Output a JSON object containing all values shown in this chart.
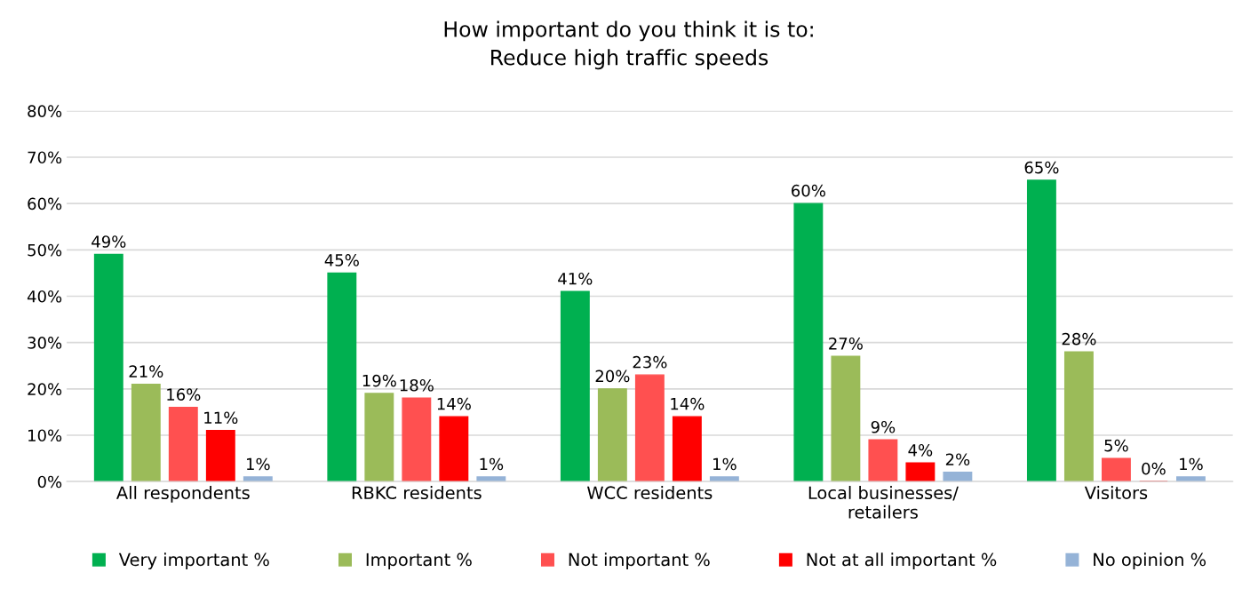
{
  "chart_data": {
    "type": "bar",
    "title": "How important do you think it is to:\nReduce high traffic speeds",
    "categories": [
      "All respondents",
      "RBKC residents",
      "WCC residents",
      "Local businesses/\nretailers",
      "Visitors"
    ],
    "series": [
      {
        "name": "Very important %",
        "color": "#00b050",
        "values": [
          49,
          45,
          41,
          60,
          65
        ],
        "value_labels": [
          "49%",
          "45%",
          "41%",
          "60%",
          "65%"
        ]
      },
      {
        "name": "Important %",
        "color": "#9bbb59",
        "values": [
          21,
          19,
          20,
          27,
          28
        ],
        "value_labels": [
          "21%",
          "19%",
          "20%",
          "27%",
          "28%"
        ]
      },
      {
        "name": "Not important %",
        "color": "#ff5050",
        "values": [
          16,
          18,
          23,
          9,
          5
        ],
        "value_labels": [
          "16%",
          "18%",
          "23%",
          "9%",
          "5%"
        ]
      },
      {
        "name": "Not at all important %",
        "color": "#ff0000",
        "values": [
          11,
          14,
          14,
          4,
          0
        ],
        "value_labels": [
          "11%",
          "14%",
          "14%",
          "4%",
          "0%"
        ]
      },
      {
        "name": "No opinion %",
        "color": "#95b3d7",
        "values": [
          1,
          1,
          1,
          2,
          1
        ],
        "value_labels": [
          "1%",
          "1%",
          "1%",
          "2%",
          "1%"
        ]
      }
    ],
    "ylim": [
      0,
      80
    ],
    "yticks": [
      {
        "value": 0,
        "label": "0%"
      },
      {
        "value": 10,
        "label": "10%"
      },
      {
        "value": 20,
        "label": "20%"
      },
      {
        "value": 30,
        "label": "30%"
      },
      {
        "value": 40,
        "label": "40%"
      },
      {
        "value": 50,
        "label": "50%"
      },
      {
        "value": 60,
        "label": "60%"
      },
      {
        "value": 70,
        "label": "70%"
      },
      {
        "value": 80,
        "label": "80%"
      }
    ],
    "grid": "y",
    "legend": "bottom"
  }
}
